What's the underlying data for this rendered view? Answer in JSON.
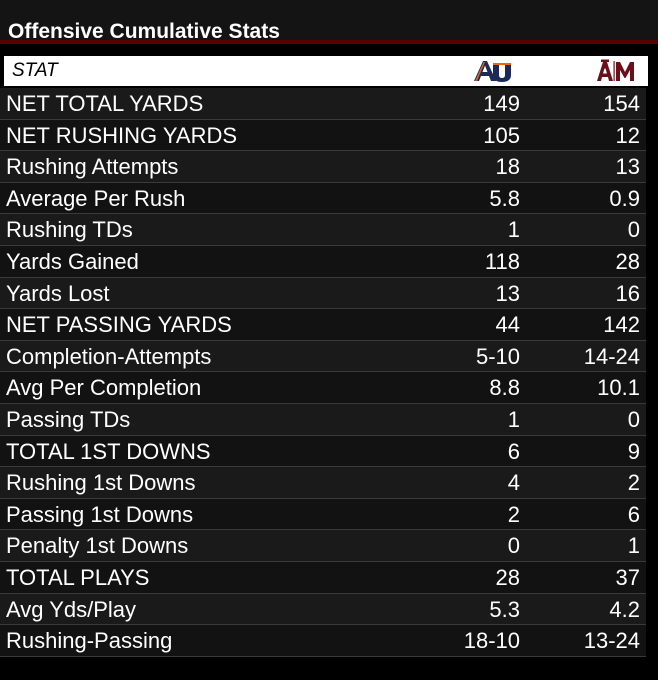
{
  "title": "Offensive Cumulative Stats",
  "header": {
    "stat_label": "STAT",
    "away_logo_icon": "auburn-au-logo-icon",
    "home_logo_icon": "texas-am-atm-logo-icon"
  },
  "colors": {
    "accent_bar": "#5a0000",
    "auburn_navy": "#1b2a57",
    "auburn_orange": "#e86a10",
    "aggie_maroon": "#6b0f1a"
  },
  "rows": [
    {
      "label": "NET TOTAL YARDS",
      "away": "149",
      "home": "154"
    },
    {
      "label": "NET RUSHING YARDS",
      "away": "105",
      "home": "12"
    },
    {
      "label": "Rushing Attempts",
      "away": "18",
      "home": "13"
    },
    {
      "label": "Average Per Rush",
      "away": "5.8",
      "home": "0.9"
    },
    {
      "label": "Rushing TDs",
      "away": "1",
      "home": "0"
    },
    {
      "label": "Yards Gained",
      "away": "118",
      "home": "28"
    },
    {
      "label": "Yards Lost",
      "away": "13",
      "home": "16"
    },
    {
      "label": "NET PASSING YARDS",
      "away": "44",
      "home": "142"
    },
    {
      "label": "Completion-Attempts",
      "away": "5-10",
      "home": "14-24"
    },
    {
      "label": "Avg Per Completion",
      "away": "8.8",
      "home": "10.1"
    },
    {
      "label": "Passing TDs",
      "away": "1",
      "home": "0"
    },
    {
      "label": "TOTAL 1ST DOWNS",
      "away": "6",
      "home": "9"
    },
    {
      "label": "Rushing 1st Downs",
      "away": "4",
      "home": "2"
    },
    {
      "label": "Passing 1st Downs",
      "away": "2",
      "home": "6"
    },
    {
      "label": "Penalty 1st Downs",
      "away": "0",
      "home": "1"
    },
    {
      "label": "TOTAL PLAYS",
      "away": "28",
      "home": "37"
    },
    {
      "label": "Avg Yds/Play",
      "away": "5.3",
      "home": "4.2"
    },
    {
      "label": "Rushing-Passing",
      "away": "18-10",
      "home": "13-24"
    }
  ]
}
